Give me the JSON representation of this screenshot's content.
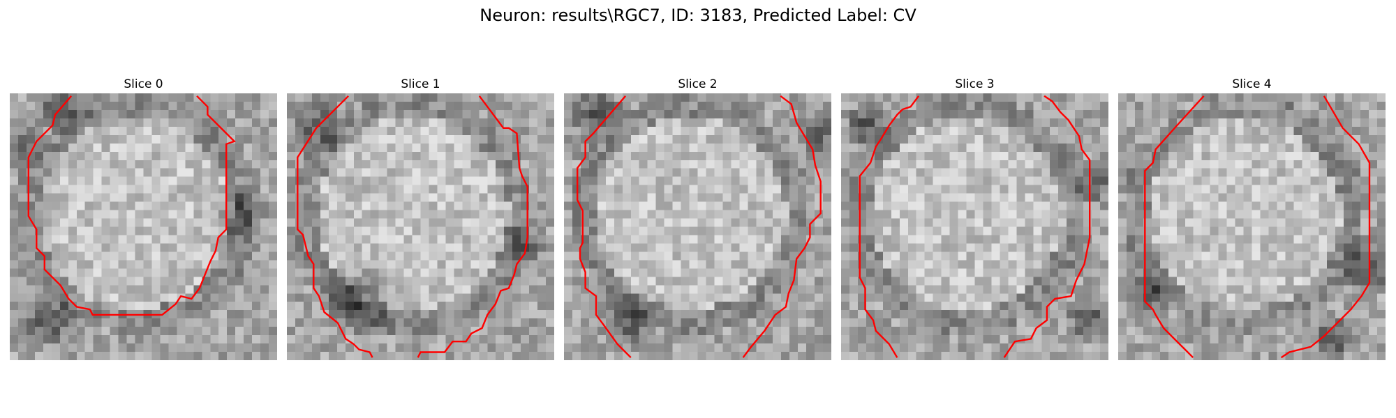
{
  "figure": {
    "title": "Neuron: results\\RGC7, ID: 3183, Predicted Label: CV",
    "contour_color": "#ff0000",
    "colormap": "gray"
  },
  "slices": [
    {
      "title": "Slice 0",
      "dark_regions": [
        [
          0.2,
          0.05,
          0.12
        ],
        [
          0.05,
          0.2,
          0.1
        ],
        [
          0.85,
          0.45,
          0.12
        ],
        [
          0.15,
          0.85,
          0.12
        ]
      ],
      "contour": [
        [
          0.23,
          0.01
        ],
        [
          0.17,
          0.08
        ],
        [
          0.16,
          0.12
        ],
        [
          0.1,
          0.18
        ],
        [
          0.07,
          0.24
        ],
        [
          0.07,
          0.46
        ],
        [
          0.1,
          0.51
        ],
        [
          0.1,
          0.58
        ],
        [
          0.13,
          0.61
        ],
        [
          0.13,
          0.66
        ],
        [
          0.19,
          0.72
        ],
        [
          0.22,
          0.77
        ],
        [
          0.25,
          0.8
        ],
        [
          0.3,
          0.81
        ],
        [
          0.31,
          0.83
        ],
        [
          0.57,
          0.83
        ],
        [
          0.62,
          0.79
        ],
        [
          0.64,
          0.76
        ],
        [
          0.68,
          0.77
        ],
        [
          0.71,
          0.73
        ],
        [
          0.73,
          0.68
        ],
        [
          0.75,
          0.63
        ],
        [
          0.77,
          0.59
        ],
        [
          0.78,
          0.54
        ],
        [
          0.81,
          0.51
        ],
        [
          0.81,
          0.19
        ],
        [
          0.84,
          0.18
        ],
        [
          0.74,
          0.08
        ],
        [
          0.74,
          0.05
        ],
        [
          0.7,
          0.01
        ]
      ]
    },
    {
      "title": "Slice 1",
      "dark_regions": [
        [
          0.12,
          0.12,
          0.12
        ],
        [
          0.28,
          0.78,
          0.15
        ],
        [
          0.88,
          0.58,
          0.1
        ]
      ],
      "contour": [
        [
          0.23,
          0.01
        ],
        [
          0.11,
          0.13
        ],
        [
          0.04,
          0.24
        ],
        [
          0.04,
          0.51
        ],
        [
          0.06,
          0.53
        ],
        [
          0.08,
          0.61
        ],
        [
          0.1,
          0.64
        ],
        [
          0.1,
          0.73
        ],
        [
          0.12,
          0.76
        ],
        [
          0.14,
          0.82
        ],
        [
          0.19,
          0.86
        ],
        [
          0.22,
          0.92
        ],
        [
          0.25,
          0.94
        ],
        [
          0.27,
          0.96
        ],
        [
          0.31,
          0.97
        ],
        [
          0.32,
          0.99
        ]
      ],
      "contour2": [
        [
          0.49,
          0.99
        ],
        [
          0.5,
          0.97
        ],
        [
          0.59,
          0.97
        ],
        [
          0.62,
          0.93
        ],
        [
          0.67,
          0.93
        ],
        [
          0.69,
          0.9
        ],
        [
          0.73,
          0.88
        ],
        [
          0.75,
          0.83
        ],
        [
          0.78,
          0.79
        ],
        [
          0.8,
          0.74
        ],
        [
          0.83,
          0.73
        ],
        [
          0.85,
          0.68
        ],
        [
          0.86,
          0.64
        ],
        [
          0.89,
          0.6
        ],
        [
          0.9,
          0.54
        ],
        [
          0.9,
          0.35
        ],
        [
          0.88,
          0.31
        ],
        [
          0.87,
          0.28
        ],
        [
          0.86,
          0.15
        ],
        [
          0.83,
          0.13
        ],
        [
          0.81,
          0.13
        ],
        [
          0.72,
          0.01
        ]
      ]
    },
    {
      "title": "Slice 2",
      "dark_regions": [
        [
          0.12,
          0.08,
          0.12
        ],
        [
          0.25,
          0.85,
          0.12
        ],
        [
          0.95,
          0.15,
          0.1
        ]
      ],
      "contour": [
        [
          0.23,
          0.01
        ],
        [
          0.11,
          0.15
        ],
        [
          0.08,
          0.18
        ],
        [
          0.08,
          0.24
        ],
        [
          0.05,
          0.28
        ],
        [
          0.05,
          0.4
        ],
        [
          0.07,
          0.44
        ],
        [
          0.07,
          0.56
        ],
        [
          0.06,
          0.58
        ],
        [
          0.06,
          0.62
        ],
        [
          0.08,
          0.67
        ],
        [
          0.08,
          0.73
        ],
        [
          0.12,
          0.76
        ],
        [
          0.12,
          0.83
        ],
        [
          0.15,
          0.87
        ],
        [
          0.2,
          0.94
        ],
        [
          0.23,
          0.97
        ],
        [
          0.25,
          0.99
        ]
      ],
      "contour2": [
        [
          0.67,
          0.99
        ],
        [
          0.7,
          0.95
        ],
        [
          0.75,
          0.89
        ],
        [
          0.79,
          0.83
        ],
        [
          0.83,
          0.8
        ],
        [
          0.84,
          0.75
        ],
        [
          0.86,
          0.7
        ],
        [
          0.87,
          0.62
        ],
        [
          0.9,
          0.58
        ],
        [
          0.92,
          0.54
        ],
        [
          0.92,
          0.49
        ],
        [
          0.96,
          0.45
        ],
        [
          0.96,
          0.33
        ],
        [
          0.94,
          0.27
        ],
        [
          0.93,
          0.21
        ],
        [
          0.9,
          0.16
        ],
        [
          0.87,
          0.11
        ],
        [
          0.85,
          0.04
        ],
        [
          0.81,
          0.01
        ]
      ]
    },
    {
      "title": "Slice 3",
      "dark_regions": [
        [
          0.1,
          0.12,
          0.1
        ],
        [
          0.93,
          0.85,
          0.1
        ],
        [
          0.95,
          0.35,
          0.08
        ]
      ],
      "contour": [
        [
          0.29,
          0.01
        ],
        [
          0.26,
          0.05
        ],
        [
          0.23,
          0.06
        ],
        [
          0.21,
          0.08
        ],
        [
          0.18,
          0.12
        ],
        [
          0.15,
          0.17
        ],
        [
          0.13,
          0.2
        ],
        [
          0.11,
          0.26
        ],
        [
          0.07,
          0.31
        ],
        [
          0.07,
          0.69
        ],
        [
          0.09,
          0.73
        ],
        [
          0.09,
          0.81
        ],
        [
          0.12,
          0.85
        ],
        [
          0.13,
          0.89
        ],
        [
          0.18,
          0.94
        ],
        [
          0.21,
          0.99
        ]
      ],
      "contour2": [
        [
          0.61,
          0.99
        ],
        [
          0.65,
          0.93
        ],
        [
          0.71,
          0.92
        ],
        [
          0.73,
          0.88
        ],
        [
          0.77,
          0.85
        ],
        [
          0.77,
          0.8
        ],
        [
          0.8,
          0.77
        ],
        [
          0.86,
          0.76
        ],
        [
          0.88,
          0.7
        ],
        [
          0.91,
          0.64
        ],
        [
          0.93,
          0.54
        ],
        [
          0.93,
          0.25
        ],
        [
          0.9,
          0.21
        ],
        [
          0.89,
          0.16
        ],
        [
          0.85,
          0.1
        ],
        [
          0.82,
          0.07
        ],
        [
          0.79,
          0.03
        ],
        [
          0.76,
          0.01
        ]
      ]
    },
    {
      "title": "Slice 4",
      "dark_regions": [
        [
          0.12,
          0.75,
          0.1
        ],
        [
          0.93,
          0.65,
          0.12
        ],
        [
          0.8,
          0.92,
          0.1
        ]
      ],
      "contour": [
        [
          0.32,
          0.01
        ],
        [
          0.22,
          0.12
        ],
        [
          0.14,
          0.21
        ],
        [
          0.13,
          0.26
        ],
        [
          0.1,
          0.29
        ],
        [
          0.1,
          0.78
        ],
        [
          0.13,
          0.81
        ],
        [
          0.14,
          0.83
        ],
        [
          0.17,
          0.88
        ],
        [
          0.21,
          0.92
        ],
        [
          0.26,
          0.97
        ],
        [
          0.28,
          0.99
        ]
      ],
      "contour2": [
        [
          0.61,
          0.99
        ],
        [
          0.64,
          0.97
        ],
        [
          0.72,
          0.95
        ],
        [
          0.77,
          0.91
        ],
        [
          0.81,
          0.87
        ],
        [
          0.87,
          0.81
        ],
        [
          0.91,
          0.76
        ],
        [
          0.94,
          0.71
        ],
        [
          0.94,
          0.26
        ],
        [
          0.9,
          0.19
        ],
        [
          0.84,
          0.13
        ],
        [
          0.77,
          0.01
        ]
      ]
    }
  ]
}
